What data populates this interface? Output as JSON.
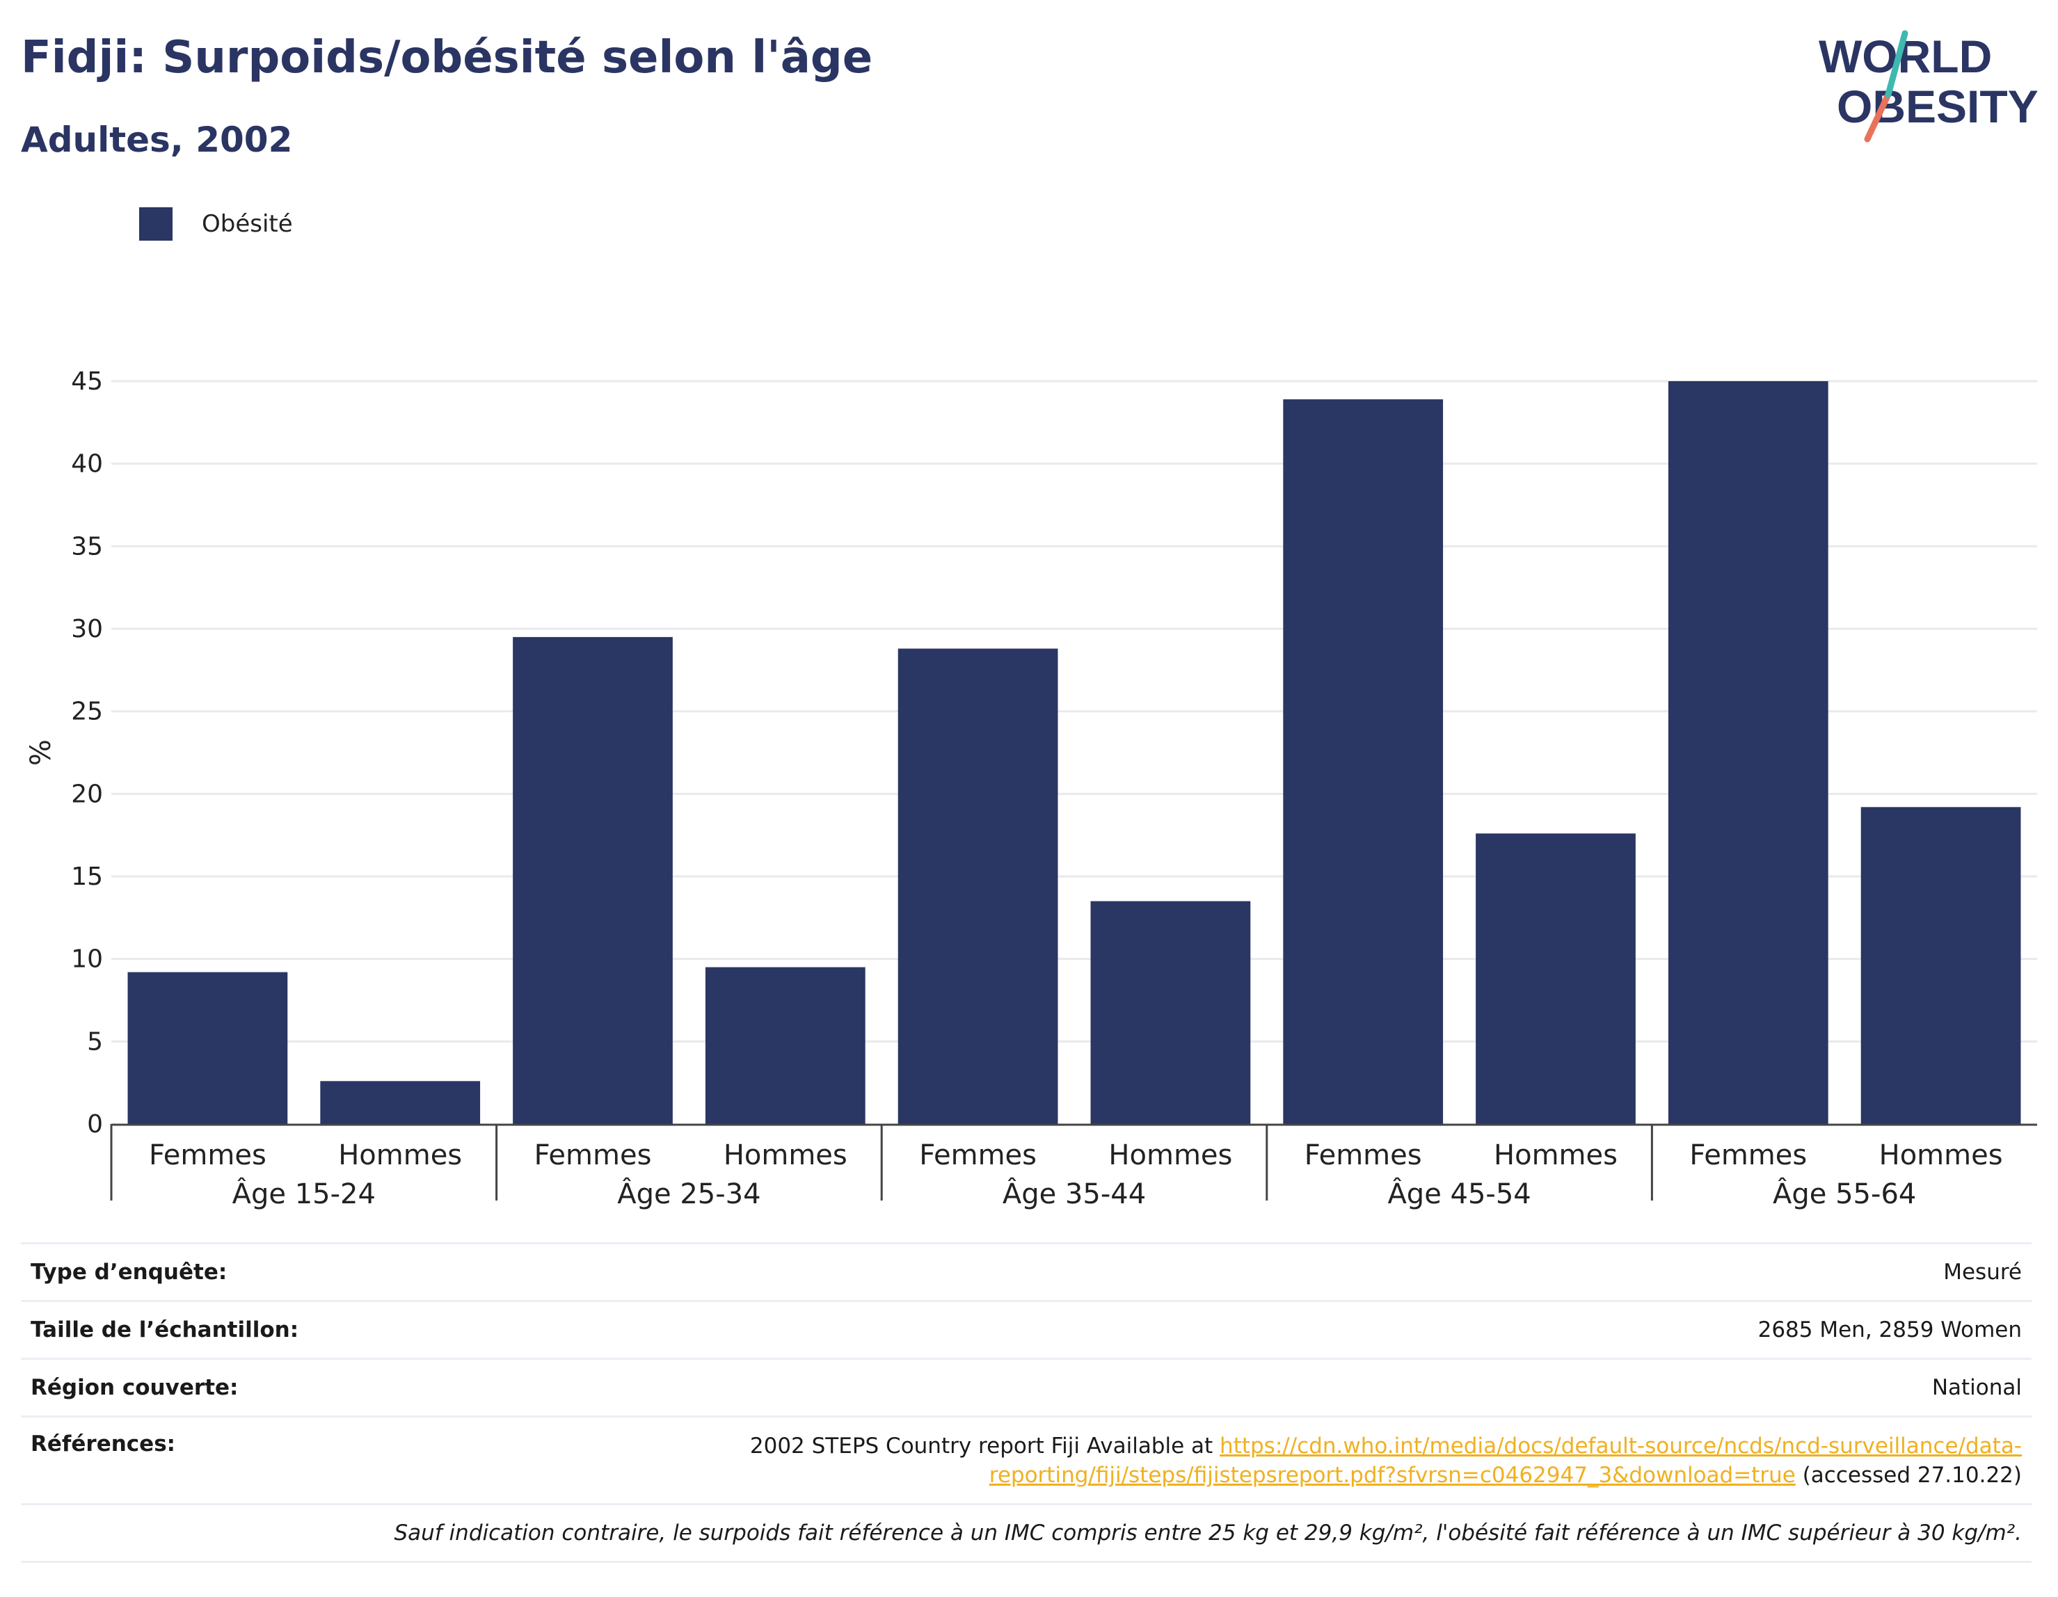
{
  "header": {
    "title": "Fidji: Surpoids/obésité selon l'âge",
    "subtitle": "Adultes, 2002",
    "logo_line1": "WORLD",
    "logo_line2": "OBESITY"
  },
  "legend": {
    "label": "Obésité",
    "color": "#2a3663"
  },
  "chart_data": {
    "type": "bar",
    "title": "Fidji: Surpoids/obésité selon l'âge",
    "subtitle": "Adultes, 2002",
    "ylabel": "%",
    "xlabel": "",
    "ylim": [
      0,
      45
    ],
    "yticks": [
      0,
      5,
      10,
      15,
      20,
      25,
      30,
      35,
      40,
      45
    ],
    "grid": true,
    "legend_position": "top-left",
    "groups": [
      "Âge 15-24",
      "Âge 25-34",
      "Âge 35-44",
      "Âge 45-54",
      "Âge 55-64"
    ],
    "subcategories": [
      "Femmes",
      "Hommes"
    ],
    "series": [
      {
        "name": "Obésité",
        "color": "#2a3663",
        "values": [
          9.2,
          2.6,
          29.5,
          9.5,
          28.8,
          13.5,
          43.9,
          17.6,
          45.0,
          19.2
        ]
      }
    ]
  },
  "info": {
    "survey_type": {
      "label": "Type d’enquête:",
      "value": "Mesuré"
    },
    "sample_size": {
      "label": "Taille de l’échantillon:",
      "value": "2685 Men, 2859 Women"
    },
    "region": {
      "label": "Région couverte:",
      "value": "National"
    },
    "references": {
      "label": "Références:",
      "prefix": "2002 STEPS Country report Fiji Available at ",
      "link": "https://cdn.who.int/media/docs/default-source/ncds/ncd-surveillance/data-reporting/fiji/steps/fijistepsreport.pdf?sfvrsn=c0462947_3&download=true",
      "suffix": " (accessed 27.10.22)"
    },
    "note": "Sauf indication contraire, le surpoids fait référence à un IMC compris entre 25 kg et 29,9 kg/m², l'obésité fait référence à un IMC supérieur à 30 kg/m²."
  }
}
